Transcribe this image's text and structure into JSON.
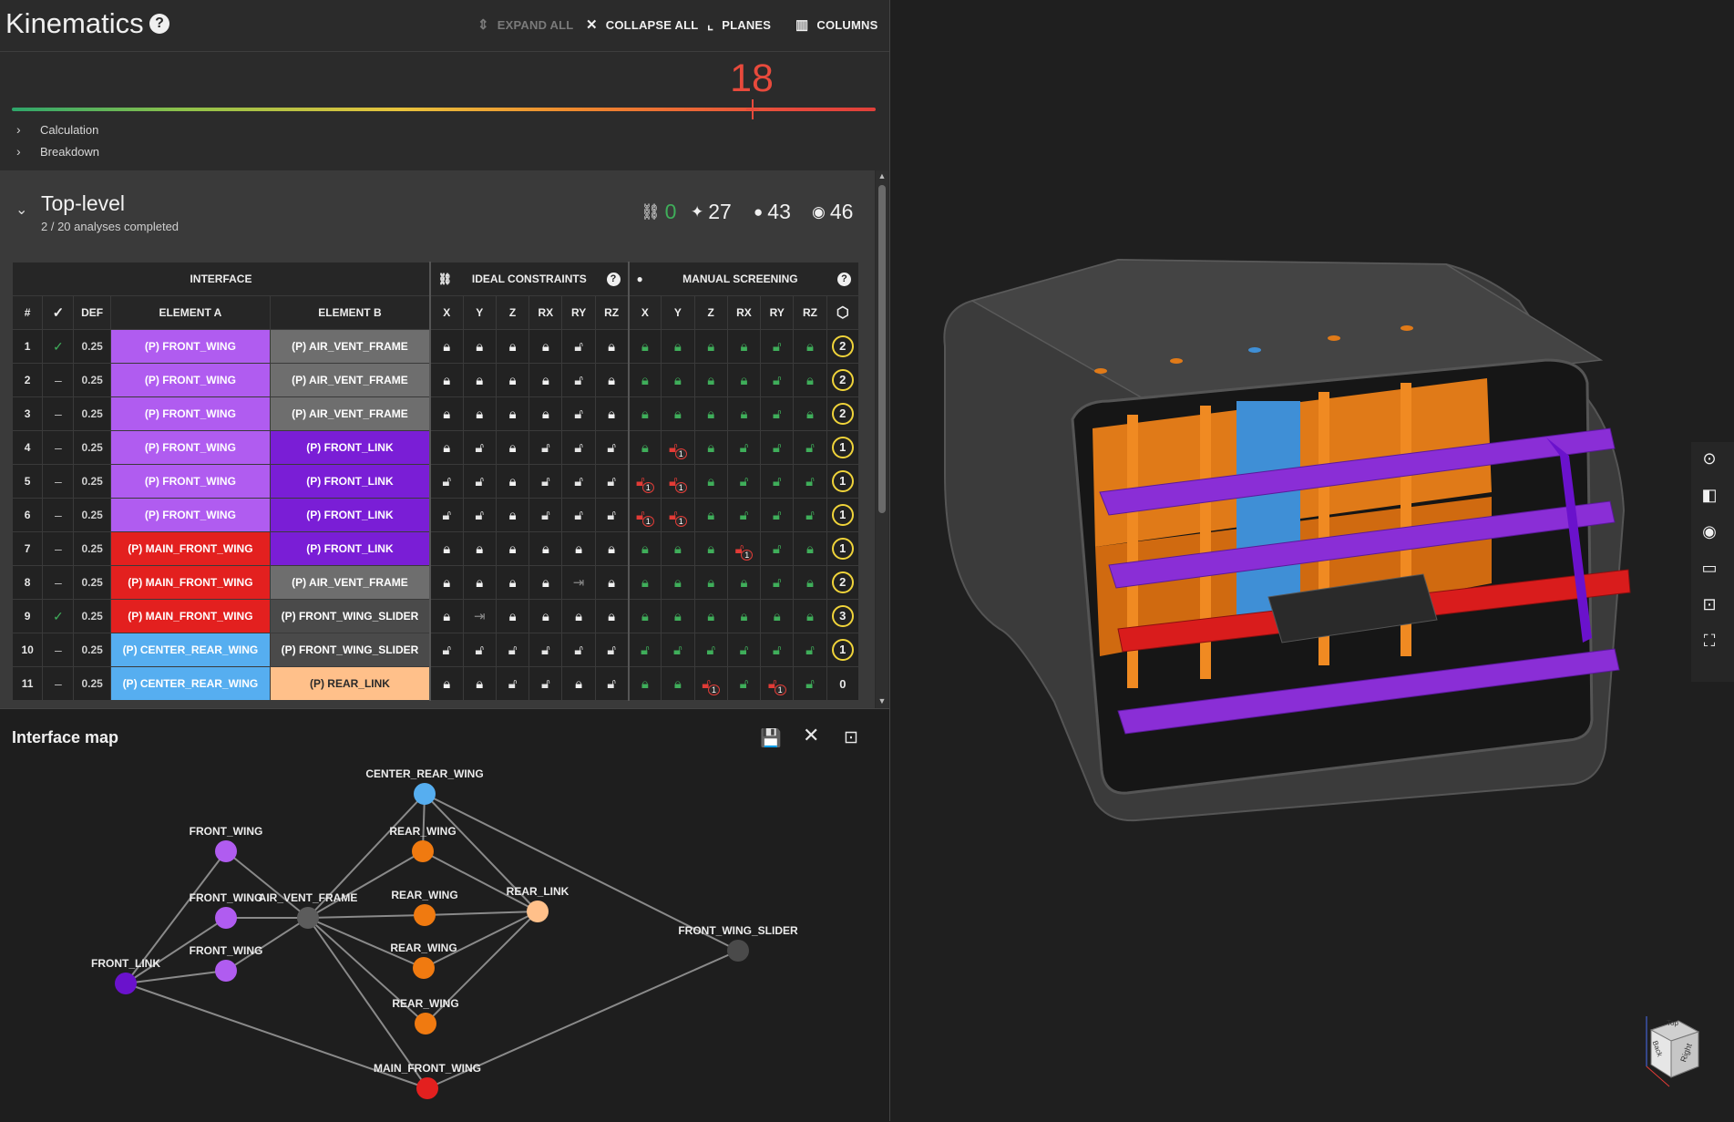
{
  "header": {
    "title": "Kinematics",
    "help_icon": "?",
    "buttons": [
      {
        "label": "EXPAND ALL",
        "icon": "expand-icon",
        "enabled": false
      },
      {
        "label": "COLLAPSE ALL",
        "icon": "collapse-icon",
        "enabled": true
      },
      {
        "label": "PLANES",
        "icon": "planes-icon",
        "enabled": true
      },
      {
        "label": "COLUMNS",
        "icon": "columns-icon",
        "enabled": true
      }
    ]
  },
  "score": {
    "value": "18",
    "expanders": [
      "Calculation",
      "Breakdown"
    ]
  },
  "section": {
    "title": "Top-level",
    "subtitle": "2 / 20 analyses completed",
    "stats": {
      "constraints": "0",
      "ai": "27",
      "manual": "43",
      "review": "46"
    }
  },
  "table": {
    "group_headers": {
      "interface": "INTERFACE",
      "ideal": "IDEAL CONSTRAINTS",
      "manual": "MANUAL SCREENING"
    },
    "columns": {
      "num": "#",
      "def": "DEF",
      "element_a": "ELEMENT A",
      "element_b": "ELEMENT B",
      "axes": [
        "X",
        "Y",
        "Z",
        "RX",
        "RY",
        "RZ"
      ]
    },
    "rows": [
      {
        "num": "1",
        "check": true,
        "def": "0.25",
        "a": "(P) FRONT_WING",
        "a_color": "#b05cf0",
        "b": "(P) AIR_VENT_FRAME",
        "b_color": "#6e6e6e",
        "ideal": [
          "L",
          "L",
          "L",
          "L",
          "O",
          "L"
        ],
        "manual": [
          "G",
          "G",
          "G",
          "G",
          "g",
          "G"
        ],
        "count": "2",
        "count_circle": true
      },
      {
        "num": "2",
        "check": false,
        "def": "0.25",
        "a": "(P) FRONT_WING",
        "a_color": "#b05cf0",
        "b": "(P) AIR_VENT_FRAME",
        "b_color": "#6e6e6e",
        "ideal": [
          "L",
          "L",
          "L",
          "L",
          "O",
          "L"
        ],
        "manual": [
          "G",
          "G",
          "G",
          "G",
          "g",
          "G"
        ],
        "count": "2",
        "count_circle": true
      },
      {
        "num": "3",
        "check": false,
        "def": "0.25",
        "a": "(P) FRONT_WING",
        "a_color": "#b05cf0",
        "b": "(P) AIR_VENT_FRAME",
        "b_color": "#6e6e6e",
        "ideal": [
          "L",
          "L",
          "L",
          "L",
          "O",
          "L"
        ],
        "manual": [
          "G",
          "G",
          "G",
          "G",
          "g",
          "G"
        ],
        "count": "2",
        "count_circle": true
      },
      {
        "num": "4",
        "check": false,
        "def": "0.25",
        "a": "(P) FRONT_WING",
        "a_color": "#b05cf0",
        "b": "(P) FRONT_LINK",
        "b_color": "#7a1ed6",
        "ideal": [
          "L",
          "O",
          "L",
          "O",
          "O",
          "O"
        ],
        "manual": [
          "G",
          "R",
          "G",
          "g",
          "g",
          "g"
        ],
        "count": "1",
        "count_circle": true
      },
      {
        "num": "5",
        "check": false,
        "def": "0.25",
        "a": "(P) FRONT_WING",
        "a_color": "#b05cf0",
        "b": "(P) FRONT_LINK",
        "b_color": "#7a1ed6",
        "ideal": [
          "O",
          "O",
          "L",
          "O",
          "O",
          "O"
        ],
        "manual": [
          "R",
          "R",
          "G",
          "g",
          "g",
          "g"
        ],
        "count": "1",
        "count_circle": true
      },
      {
        "num": "6",
        "check": false,
        "def": "0.25",
        "a": "(P) FRONT_WING",
        "a_color": "#b05cf0",
        "b": "(P) FRONT_LINK",
        "b_color": "#7a1ed6",
        "ideal": [
          "O",
          "O",
          "L",
          "O",
          "O",
          "O"
        ],
        "manual": [
          "R",
          "R",
          "G",
          "g",
          "g",
          "g"
        ],
        "count": "1",
        "count_circle": true
      },
      {
        "num": "7",
        "check": false,
        "def": "0.25",
        "a": "(P) MAIN_FRONT_WING",
        "a_color": "#e3201f",
        "b": "(P) FRONT_LINK",
        "b_color": "#7a1ed6",
        "ideal": [
          "L",
          "L",
          "L",
          "L",
          "L",
          "L"
        ],
        "manual": [
          "G",
          "G",
          "G",
          "R",
          "g",
          "G"
        ],
        "count": "1",
        "count_circle": true
      },
      {
        "num": "8",
        "check": false,
        "def": "0.25",
        "a": "(P) MAIN_FRONT_WING",
        "a_color": "#e3201f",
        "b": "(P) AIR_VENT_FRAME",
        "b_color": "#6e6e6e",
        "ideal": [
          "L",
          "L",
          "L",
          "L",
          "S",
          "L"
        ],
        "manual": [
          "G",
          "G",
          "G",
          "G",
          "g",
          "G"
        ],
        "count": "2",
        "count_circle": true
      },
      {
        "num": "9",
        "check": true,
        "def": "0.25",
        "a": "(P) MAIN_FRONT_WING",
        "a_color": "#e3201f",
        "b": "(P) FRONT_WING_SLIDER",
        "b_color": "#4a4a4a",
        "ideal": [
          "L",
          "S",
          "L",
          "L",
          "L",
          "L"
        ],
        "manual": [
          "G",
          "G",
          "G",
          "G",
          "G",
          "G"
        ],
        "count": "3",
        "count_circle": true
      },
      {
        "num": "10",
        "check": false,
        "def": "0.25",
        "a": "(P) CENTER_REAR_WING",
        "a_color": "#56aef0",
        "b": "(P) FRONT_WING_SLIDER",
        "b_color": "#4a4a4a",
        "ideal": [
          "O",
          "O",
          "O",
          "O",
          "O",
          "O"
        ],
        "manual": [
          "g",
          "g",
          "g",
          "g",
          "g",
          "g"
        ],
        "count": "1",
        "count_circle": true
      },
      {
        "num": "11",
        "check": false,
        "def": "0.25",
        "a": "(P) CENTER_REAR_WING",
        "a_color": "#56aef0",
        "b": "(P) REAR_LINK",
        "b_color": "#ffc08a",
        "ideal": [
          "L",
          "L",
          "O",
          "O",
          "L",
          "O"
        ],
        "manual": [
          "G",
          "G",
          "R",
          "g",
          "R",
          "g"
        ],
        "count": "0",
        "count_circle": false
      }
    ]
  },
  "interface_map": {
    "title": "Interface map",
    "nodes": [
      {
        "id": "center_rear_wing",
        "label": "CENTER_REAR_WING",
        "color": "#56aef0"
      },
      {
        "id": "front_wing_1",
        "label": "FRONT_WING",
        "color": "#b05cf0"
      },
      {
        "id": "rear_wing_1",
        "label": "REAR_WING",
        "color": "#f07a10"
      },
      {
        "id": "front_wing_2",
        "label": "FRONT_WING",
        "color": "#b05cf0"
      },
      {
        "id": "air_vent_frame",
        "label": "AIR_VENT_FRAME",
        "color": "#5c5c5c"
      },
      {
        "id": "rear_wing_2",
        "label": "REAR_WING",
        "color": "#f07a10"
      },
      {
        "id": "rear_link",
        "label": "REAR_LINK",
        "color": "#ffc08a"
      },
      {
        "id": "front_wing_3",
        "label": "FRONT_WING",
        "color": "#b05cf0"
      },
      {
        "id": "rear_wing_3",
        "label": "REAR_WING",
        "color": "#f07a10"
      },
      {
        "id": "front_link",
        "label": "FRONT_LINK",
        "color": "#6a12cc"
      },
      {
        "id": "front_wing_slider",
        "label": "FRONT_WING_SLIDER",
        "color": "#4a4a4a"
      },
      {
        "id": "rear_wing_4",
        "label": "REAR_WING",
        "color": "#f07a10"
      },
      {
        "id": "main_front_wing",
        "label": "MAIN_FRONT_WING",
        "color": "#e3201f"
      }
    ],
    "edges": [
      [
        "center_rear_wing",
        "rear_wing_1"
      ],
      [
        "center_rear_wing",
        "rear_link"
      ],
      [
        "center_rear_wing",
        "air_vent_frame"
      ],
      [
        "center_rear_wing",
        "front_wing_slider"
      ],
      [
        "rear_wing_1",
        "rear_link"
      ],
      [
        "rear_wing_1",
        "air_vent_frame"
      ],
      [
        "rear_wing_2",
        "rear_link"
      ],
      [
        "rear_wing_2",
        "air_vent_frame"
      ],
      [
        "rear_wing_3",
        "rear_link"
      ],
      [
        "rear_wing_3",
        "air_vent_frame"
      ],
      [
        "rear_wing_4",
        "rear_link"
      ],
      [
        "rear_wing_4",
        "air_vent_frame"
      ],
      [
        "front_wing_1",
        "air_vent_frame"
      ],
      [
        "front_wing_1",
        "front_link"
      ],
      [
        "front_wing_2",
        "air_vent_frame"
      ],
      [
        "front_wing_2",
        "front_link"
      ],
      [
        "front_wing_3",
        "air_vent_frame"
      ],
      [
        "front_wing_3",
        "front_link"
      ],
      [
        "front_link",
        "main_front_wing"
      ],
      [
        "air_vent_frame",
        "main_front_wing"
      ],
      [
        "main_front_wing",
        "front_wing_slider"
      ]
    ]
  },
  "viewport": {
    "tools": [
      "fit-view-icon",
      "section-icon",
      "visibility-icon",
      "measure-icon",
      "focus-icon",
      "fullscreen-icon"
    ],
    "cube_label_top": "Top",
    "cube_label_right": "Right",
    "cube_label_front": "Back"
  }
}
